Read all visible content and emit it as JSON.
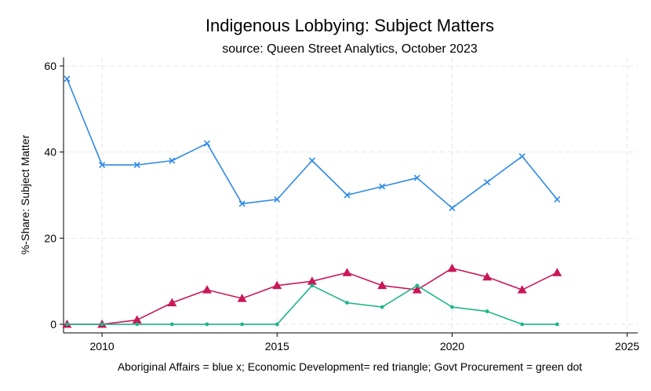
{
  "chart_data": {
    "type": "line",
    "title": "Indigenous Lobbying: Subject Matters",
    "subtitle": "source: Queen Street Analytics, October 2023",
    "ylabel": "%-Share: Subject Matter",
    "xlabel": "",
    "note": "Aboriginal Affairs = blue x; Economic Development= red triangle; Govt Procurement = green dot",
    "xlim": [
      2008.9,
      2025.3
    ],
    "ylim": [
      -2,
      62
    ],
    "x_ticks": [
      "2010",
      "2015",
      "2020",
      "2025"
    ],
    "y_ticks": [
      "0",
      "20",
      "40",
      "60"
    ],
    "grid": true,
    "x": [
      2009,
      2010,
      2011,
      2012,
      2013,
      2014,
      2015,
      2016,
      2017,
      2018,
      2019,
      2020,
      2021,
      2022,
      2023
    ],
    "series": [
      {
        "marker": "x",
        "color": "#2f8ae5",
        "values": [
          57,
          37,
          37,
          38,
          42,
          28,
          29,
          38,
          30,
          32,
          34,
          27,
          33,
          39,
          29
        ]
      },
      {
        "marker": "triangle",
        "color": "#c8185a",
        "values": [
          0,
          0,
          1,
          5,
          8,
          6,
          9,
          10,
          12,
          9,
          8,
          13,
          11,
          8,
          12
        ]
      },
      {
        "marker": "dot",
        "color": "#1fb58a",
        "values": [
          0,
          0,
          0,
          0,
          0,
          0,
          0,
          9,
          5,
          4,
          9,
          4,
          3,
          0,
          0
        ]
      }
    ]
  }
}
